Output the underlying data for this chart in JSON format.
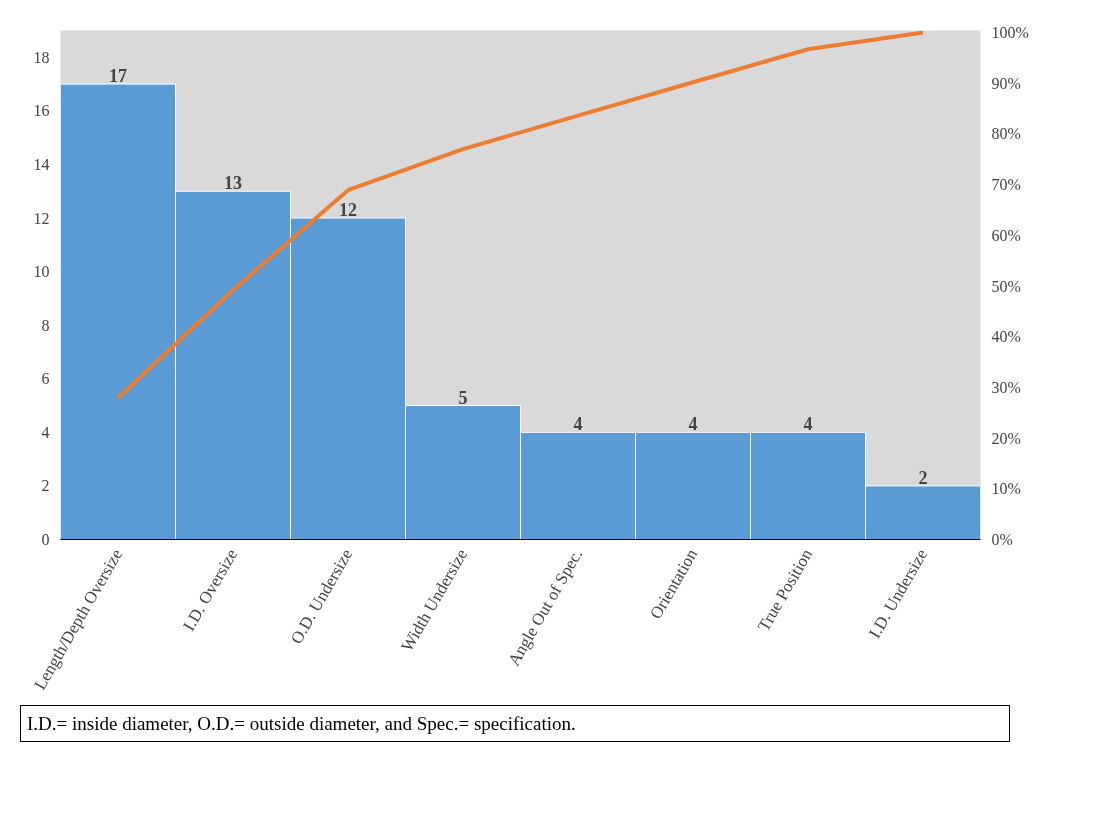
{
  "chart_data": {
    "type": "bar",
    "categories": [
      "Length/Depth Oversize",
      "I.D. Oversize",
      "O.D. Undersize",
      "Width Undersize",
      "Angle Out of Spec.",
      "Orientation",
      "True Position",
      "I.D. Undersize"
    ],
    "series": [
      {
        "color": "#5b9bd5",
        "values": [
          17,
          13,
          12,
          5,
          4,
          4,
          4,
          2
        ],
        "value_labels": [
          "17",
          "13",
          "12",
          "5",
          "4",
          "4",
          "4",
          "2"
        ]
      },
      {
        "type": "line",
        "axis": "y2",
        "color": "#ed7d31",
        "values": [
          27.9,
          49.2,
          68.9,
          77.0,
          83.6,
          90.2,
          96.7,
          100
        ]
      }
    ],
    "ylim": [
      0,
      19
    ],
    "yticks": [
      0,
      2,
      4,
      6,
      8,
      10,
      12,
      14,
      16,
      18
    ],
    "y2lim": [
      0,
      100.4
    ],
    "y2ticks": [
      {
        "value": 0,
        "label": "0%"
      },
      {
        "value": 10,
        "label": "10%"
      },
      {
        "value": 20,
        "label": "20%"
      },
      {
        "value": 30,
        "label": "30%"
      },
      {
        "value": 40,
        "label": "40%"
      },
      {
        "value": 50,
        "label": "50%"
      },
      {
        "value": 60,
        "label": "60%"
      },
      {
        "value": 70,
        "label": "70%"
      },
      {
        "value": 80,
        "label": "80%"
      },
      {
        "value": 90,
        "label": "90%"
      },
      {
        "value": 100,
        "label": "100%"
      }
    ],
    "grid": false,
    "marker": "none",
    "line_style": "solid",
    "annotations": [
      "I.D.= inside diameter, O.D.= outside diameter, and Spec.= specification."
    ]
  }
}
